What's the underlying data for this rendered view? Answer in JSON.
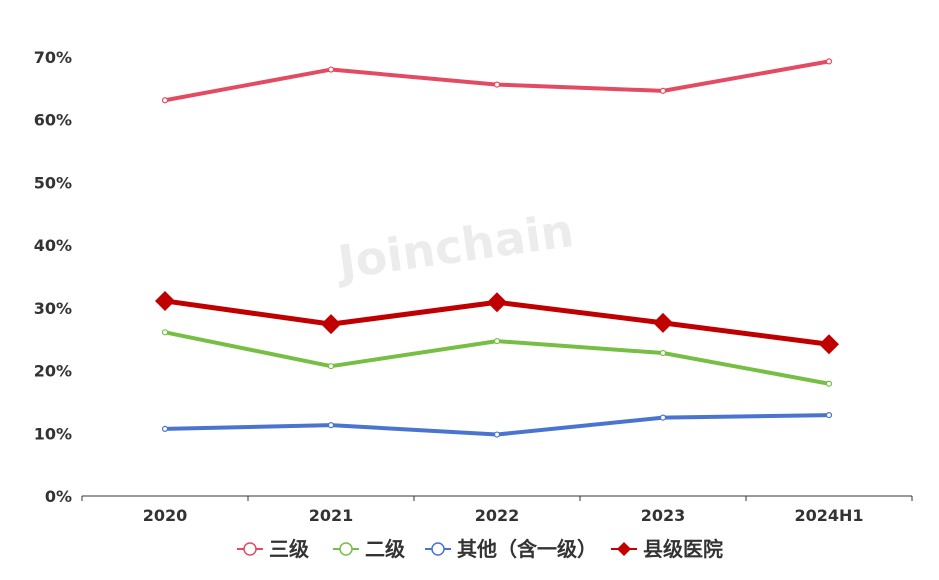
{
  "chart_data": {
    "type": "line",
    "categories": [
      "2020",
      "2021",
      "2022",
      "2023",
      "2024H1"
    ],
    "yticks": [
      "0%",
      "10%",
      "20%",
      "30%",
      "40%",
      "50%",
      "60%",
      "70%"
    ],
    "ylim": [
      0,
      70
    ],
    "grid": false,
    "legend_position": "bottom",
    "watermark": "Joinchain",
    "series": [
      {
        "name": "三级",
        "values": [
          63.1,
          68.0,
          65.6,
          64.6,
          69.3
        ],
        "color": "#e34b62",
        "marker": "circle"
      },
      {
        "name": "二级",
        "values": [
          26.1,
          20.7,
          24.7,
          22.8,
          17.9
        ],
        "color": "#77bf44",
        "marker": "circle"
      },
      {
        "name": "其他（含一级）",
        "values": [
          10.7,
          11.3,
          9.8,
          12.5,
          12.9
        ],
        "color": "#4a74cf",
        "marker": "circle"
      },
      {
        "name": "县级医院",
        "values": [
          31.1,
          27.4,
          30.9,
          27.6,
          24.2
        ],
        "color": "#c00000",
        "marker": "diamond"
      }
    ]
  }
}
